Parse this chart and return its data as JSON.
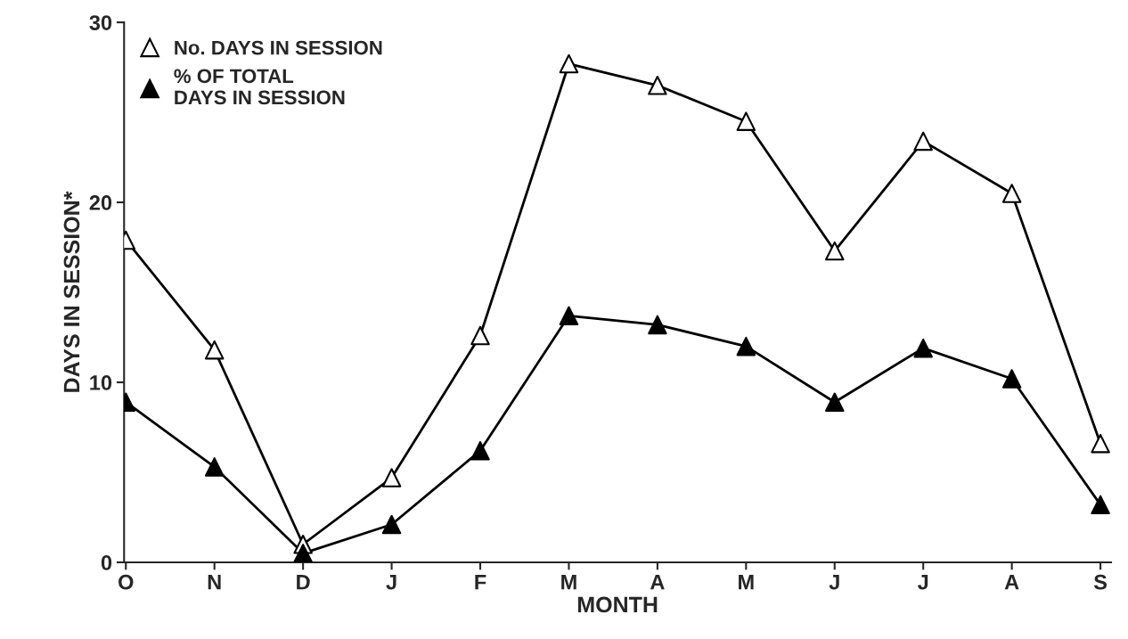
{
  "chart_data": {
    "type": "line",
    "xlabel": "MONTH",
    "ylabel": "DAYS IN SESSION*",
    "categories": [
      "O",
      "N",
      "D",
      "J",
      "F",
      "M",
      "A",
      "M",
      "J",
      "J",
      "A",
      "S"
    ],
    "series": [
      {
        "name": "No. DAYS IN SESSION",
        "color": "#000000",
        "colors": [
          "#ffffff",
          "#ffffff",
          "#ffffff",
          "#ffffff",
          "#ffffff",
          "#ffffff",
          "#ffffff",
          "#ffffff",
          "#ffffff",
          "#ffffff",
          "#ffffff",
          "#ffffff"
        ],
        "values": [
          17.9,
          11.8,
          1.0,
          4.7,
          12.6,
          27.7,
          26.5,
          24.5,
          17.3,
          23.4,
          20.5,
          6.6
        ]
      },
      {
        "name": "% OF TOTAL\nDAYS IN SESSION",
        "color": "#000000",
        "colors": [
          "#000000",
          "#000000",
          "#000000",
          "#000000",
          "#000000",
          "#000000",
          "#000000",
          "#000000",
          "#000000",
          "#000000",
          "#000000",
          "#000000"
        ],
        "values": [
          8.9,
          5.3,
          0.5,
          2.1,
          6.2,
          13.7,
          13.2,
          12.0,
          8.9,
          11.9,
          10.2,
          3.2
        ]
      }
    ],
    "ylim": [
      0,
      30
    ],
    "yticks": [
      0,
      10,
      20,
      30
    ],
    "grid": false,
    "legend": "top left",
    "marker": "triangle",
    "line_style": "solid"
  }
}
